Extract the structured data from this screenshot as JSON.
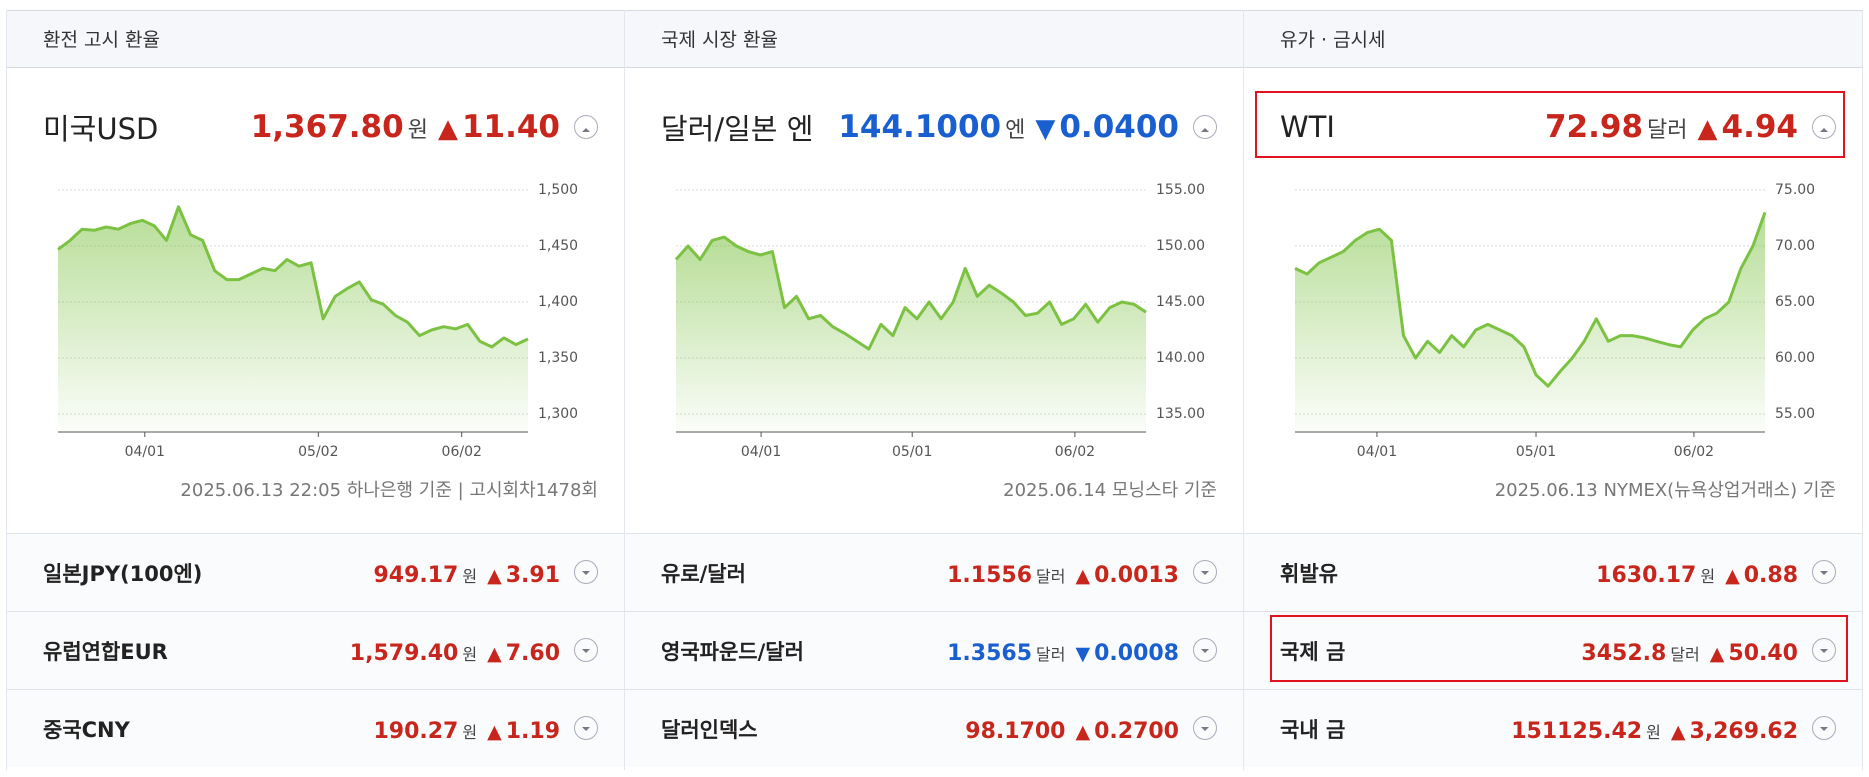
{
  "panels": [
    {
      "header": "환전 고시 환율",
      "main": {
        "name": "미국USD",
        "value": "1,367.80",
        "unit": "원",
        "arrow": "▲",
        "change": "11.40",
        "color": "#c8261c"
      },
      "chart": {
        "type": "line",
        "color": "#7cc242",
        "values": [
          1447,
          1455,
          1465,
          1464,
          1467,
          1465,
          1470,
          1473,
          1468,
          1455,
          1485,
          1460,
          1455,
          1428,
          1420,
          1420,
          1425,
          1430,
          1428,
          1438,
          1432,
          1435,
          1385,
          1405,
          1412,
          1418,
          1402,
          1398,
          1388,
          1382,
          1370,
          1375,
          1378,
          1376,
          1380,
          1365,
          1360,
          1368,
          1362,
          1367
        ],
        "xlim": [
          0,
          39
        ],
        "xticks": [
          {
            "value": 7.2,
            "label": "04/01"
          },
          {
            "value": 21.6,
            "label": "05/02"
          },
          {
            "value": 33.5,
            "label": "06/02"
          }
        ],
        "ylim": [
          1284,
          1500
        ],
        "yticks": [
          {
            "value": 1300,
            "label": "1,300"
          },
          {
            "value": 1350,
            "label": "1,350"
          },
          {
            "value": 1400,
            "label": "1,400"
          },
          {
            "value": 1450,
            "label": "1,450"
          },
          {
            "value": 1500,
            "label": "1,500"
          }
        ],
        "grid": true
      },
      "footnote": "2025.06.13 22:05 하나은행 기준 | 고시회차1478회",
      "rows": [
        {
          "name": "일본JPY(100엔)",
          "value": "949.17",
          "unit": "원",
          "arrow": "▲",
          "change": "3.91",
          "color": "#c8261c"
        },
        {
          "name": "유럽연합EUR",
          "value": "1,579.40",
          "unit": "원",
          "arrow": "▲",
          "change": "7.60",
          "color": "#c8261c"
        },
        {
          "name": "중국CNY",
          "value": "190.27",
          "unit": "원",
          "arrow": "▲",
          "change": "1.19",
          "color": "#c8261c"
        }
      ]
    },
    {
      "header": "국제 시장 환율",
      "main": {
        "name": "달러/일본 엔",
        "value": "144.1000",
        "unit": "엔",
        "arrow": "▼",
        "change": "0.0400",
        "color": "#1a5fd0"
      },
      "chart": {
        "type": "line",
        "color": "#7cc242",
        "values": [
          148.8,
          150,
          148.8,
          150.5,
          150.8,
          150,
          149.5,
          149.2,
          149.5,
          144.5,
          145.5,
          143.5,
          143.8,
          142.8,
          142.2,
          141.5,
          140.8,
          143,
          142,
          144.5,
          143.5,
          145,
          143.5,
          145,
          148,
          145.5,
          146.5,
          145.8,
          145,
          143.8,
          144,
          145,
          143,
          143.5,
          144.8,
          143.2,
          144.5,
          145,
          144.8,
          144.1
        ],
        "xlim": [
          0,
          39
        ],
        "xticks": [
          {
            "value": 7.06,
            "label": "04/01"
          },
          {
            "value": 19.6,
            "label": "05/01"
          },
          {
            "value": 33.1,
            "label": "06/02"
          }
        ],
        "ylim": [
          133.4,
          155
        ],
        "yticks": [
          {
            "value": 135,
            "label": "135.00"
          },
          {
            "value": 140,
            "label": "140.00"
          },
          {
            "value": 145,
            "label": "145.00"
          },
          {
            "value": 150,
            "label": "150.00"
          },
          {
            "value": 155,
            "label": "155.00"
          }
        ],
        "grid": true
      },
      "footnote": "2025.06.14 모닝스타 기준",
      "rows": [
        {
          "name": "유로/달러",
          "value": "1.1556",
          "unit": "달러",
          "arrow": "▲",
          "change": "0.0013",
          "color": "#c8261c"
        },
        {
          "name": "영국파운드/달러",
          "value": "1.3565",
          "unit": "달러",
          "arrow": "▼",
          "change": "0.0008",
          "color": "#1a5fd0"
        },
        {
          "name": "달러인덱스",
          "value": "98.1700",
          "unit": "",
          "arrow": "▲",
          "change": "0.2700",
          "color": "#c8261c"
        }
      ]
    },
    {
      "header": "유가 · 금시세",
      "main": {
        "name": "WTI",
        "value": "72.98",
        "unit": "달러",
        "arrow": "▲",
        "change": "4.94",
        "color": "#c8261c"
      },
      "chart": {
        "type": "line",
        "color": "#7cc242",
        "values": [
          68,
          67.5,
          68.5,
          69,
          69.5,
          70.5,
          71.2,
          71.5,
          70.5,
          62,
          60,
          61.5,
          60.5,
          62,
          61,
          62.5,
          63,
          62.5,
          62,
          61,
          58.5,
          57.5,
          58.8,
          60,
          61.5,
          63.5,
          61.5,
          62,
          62,
          61.8,
          61.5,
          61.2,
          61,
          62.5,
          63.5,
          64,
          65,
          68,
          70,
          73
        ],
        "xlim": [
          0,
          39
        ],
        "xticks": [
          {
            "value": 6.8,
            "label": "04/01"
          },
          {
            "value": 20.0,
            "label": "05/01"
          },
          {
            "value": 33.1,
            "label": "06/02"
          }
        ],
        "ylim": [
          53.4,
          75
        ],
        "yticks": [
          {
            "value": 55,
            "label": "55.00"
          },
          {
            "value": 60,
            "label": "60.00"
          },
          {
            "value": 65,
            "label": "65.00"
          },
          {
            "value": 70,
            "label": "70.00"
          },
          {
            "value": 75,
            "label": "75.00"
          }
        ],
        "grid": true
      },
      "footnote": "2025.06.13 NYMEX(뉴욕상업거래소) 기준",
      "rows": [
        {
          "name": "휘발유",
          "value": "1630.17",
          "unit": "원",
          "arrow": "▲",
          "change": "0.88",
          "color": "#c8261c"
        },
        {
          "name": "국제 금",
          "value": "3452.8",
          "unit": "달러",
          "arrow": "▲",
          "change": "50.40",
          "color": "#c8261c"
        },
        {
          "name": "국내 금",
          "value": "151125.42",
          "unit": "원",
          "arrow": "▲",
          "change": "3,269.62",
          "color": "#c8261c"
        }
      ]
    }
  ]
}
